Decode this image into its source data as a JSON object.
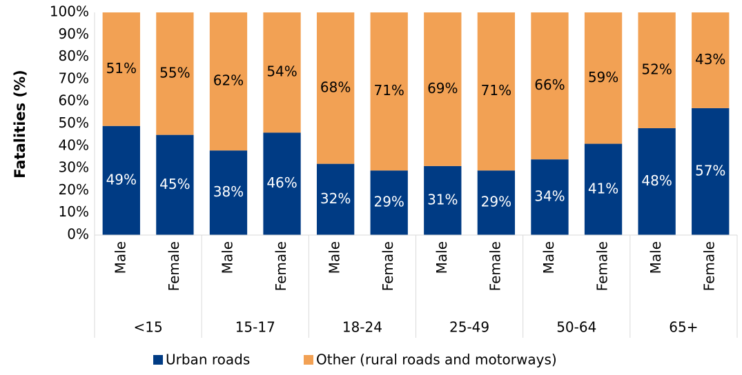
{
  "chart_data": {
    "type": "stacked_bar",
    "ylabel": "Fatalities (%)",
    "categories": [
      "Male",
      "Female",
      "Male",
      "Female",
      "Male",
      "Female",
      "Male",
      "Female",
      "Male",
      "Female",
      "Male",
      "Female"
    ],
    "category_groups": [
      "<15",
      "15-17",
      "18-24",
      "25-49",
      "50-64",
      "65+"
    ],
    "series": [
      {
        "name": "Urban roads",
        "color": "#003b84",
        "values": [
          49,
          45,
          38,
          46,
          32,
          29,
          31,
          29,
          34,
          41,
          48,
          57
        ],
        "value_labels": [
          "49%",
          "45%",
          "38%",
          "46%",
          "32%",
          "29%",
          "31%",
          "29%",
          "34%",
          "41%",
          "48%",
          "57%"
        ]
      },
      {
        "name": "Other (rural roads and motorways)",
        "color": "#f2a154",
        "values": [
          51,
          55,
          62,
          54,
          68,
          71,
          69,
          71,
          66,
          59,
          52,
          43
        ],
        "value_labels": [
          "51%",
          "55%",
          "62%",
          "54%",
          "68%",
          "71%",
          "69%",
          "71%",
          "66%",
          "59%",
          "52%",
          "43%"
        ]
      }
    ],
    "ylim": [
      0,
      100
    ],
    "yticks": [
      {
        "value": 0,
        "label": "0%"
      },
      {
        "value": 10,
        "label": "10%"
      },
      {
        "value": 20,
        "label": "20%"
      },
      {
        "value": 30,
        "label": "30%"
      },
      {
        "value": 40,
        "label": "40%"
      },
      {
        "value": 50,
        "label": "50%"
      },
      {
        "value": 60,
        "label": "60%"
      },
      {
        "value": 70,
        "label": "70%"
      },
      {
        "value": 80,
        "label": "80%"
      },
      {
        "value": 90,
        "label": "90%"
      },
      {
        "value": 100,
        "label": "100%"
      }
    ],
    "legend": "bottom"
  }
}
